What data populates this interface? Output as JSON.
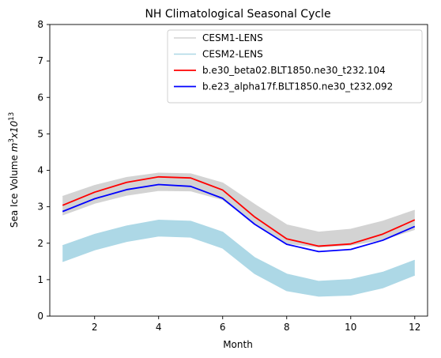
{
  "chart_data": {
    "type": "line",
    "title": "NH Climatological Seasonal Cycle",
    "xlabel": "Month",
    "ylabel": {
      "prefix": "Sea Ice Volume ",
      "unit_base": "m",
      "unit_exp": "3",
      "mult": "x10",
      "mult_exp": "13"
    },
    "xlim": [
      0.6,
      12.4
    ],
    "ylim": [
      0,
      8
    ],
    "xticks": [
      2,
      4,
      6,
      8,
      10,
      12
    ],
    "yticks": [
      0,
      1,
      2,
      3,
      4,
      5,
      6,
      7,
      8
    ],
    "grid": false,
    "legend_position": "upper right",
    "x": [
      1,
      2,
      3,
      4,
      5,
      6,
      7,
      8,
      9,
      10,
      11,
      12
    ],
    "bands": [
      {
        "name": "CESM1-LENS",
        "color": "#d3d3d3",
        "lower": [
          2.78,
          3.1,
          3.32,
          3.45,
          3.44,
          3.2,
          2.55,
          2.0,
          1.9,
          1.95,
          2.1,
          2.38
        ],
        "upper": [
          3.28,
          3.58,
          3.8,
          3.92,
          3.9,
          3.65,
          3.06,
          2.5,
          2.3,
          2.38,
          2.6,
          2.9
        ]
      },
      {
        "name": "CESM2-LENS",
        "color": "#add8e6",
        "lower": [
          1.5,
          1.82,
          2.05,
          2.2,
          2.17,
          1.87,
          1.17,
          0.7,
          0.55,
          0.58,
          0.78,
          1.13
        ],
        "upper": [
          1.93,
          2.24,
          2.47,
          2.63,
          2.6,
          2.3,
          1.6,
          1.15,
          0.95,
          1.0,
          1.2,
          1.53
        ]
      }
    ],
    "series": [
      {
        "name": "b.e30_beta02.BLT1850.ne30_t232.104",
        "color": "#ff0000",
        "values": [
          3.04,
          3.4,
          3.67,
          3.82,
          3.79,
          3.46,
          2.72,
          2.12,
          1.92,
          1.98,
          2.25,
          2.64
        ]
      },
      {
        "name": "b.e23_alpha17f.BLT1850.ne30_t232.092",
        "color": "#0000ff",
        "values": [
          2.87,
          3.22,
          3.47,
          3.61,
          3.56,
          3.23,
          2.52,
          1.97,
          1.77,
          1.83,
          2.08,
          2.46
        ]
      }
    ]
  }
}
